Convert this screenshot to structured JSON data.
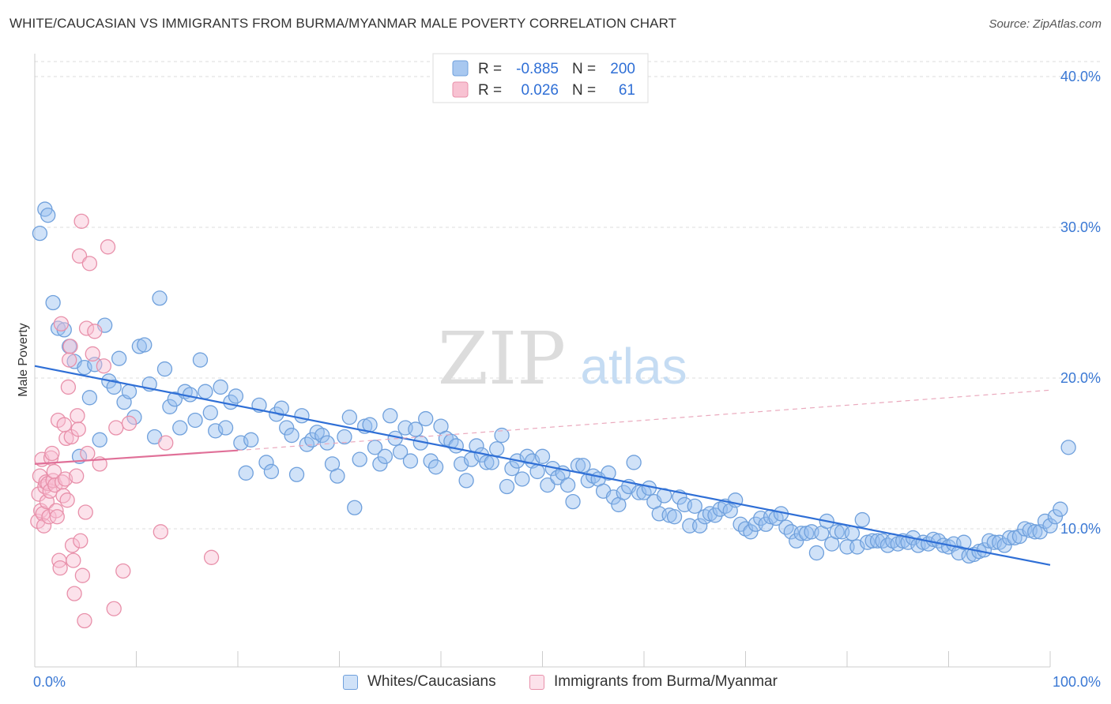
{
  "header": {
    "title": "WHITE/CAUCASIAN VS IMMIGRANTS FROM BURMA/MYANMAR MALE POVERTY CORRELATION CHART",
    "source": "Source: ZipAtlas.com"
  },
  "watermark": {
    "zip": "ZIP",
    "atlas": "atlas"
  },
  "stats": {
    "r_label": "R =",
    "n_label": "N =",
    "rows": [
      {
        "r": "-0.885",
        "n": "200",
        "color": "#a8c8f0",
        "border": "#6fa0dc"
      },
      {
        "r": "0.026",
        "n": "61",
        "color": "#f8c2d2",
        "border": "#e890aa"
      }
    ]
  },
  "chart_data": {
    "type": "scatter",
    "title": "WHITE/CAUCASIAN VS IMMIGRANTS FROM BURMA/MYANMAR MALE POVERTY CORRELATION CHART",
    "xlabel": "",
    "ylabel": "Male Poverty",
    "xlim": [
      0,
      100
    ],
    "ylim": [
      0,
      40
    ],
    "x_tick_labels": [
      "0.0%",
      "100.0%"
    ],
    "y_tick_values": [
      10,
      20,
      30,
      40
    ],
    "y_tick_labels": [
      "10.0%",
      "20.0%",
      "30.0%",
      "40.0%"
    ],
    "grid": true,
    "legend": "bottom",
    "series": [
      {
        "name": "Whites/Caucasians",
        "color": "#6fa0dc",
        "fill": "rgba(150,190,240,0.45)",
        "trend_color": "#2f6fd6",
        "trend": {
          "x0": 0,
          "y0": 20.8,
          "x1": 100,
          "y1": 7.6
        },
        "points": [
          [
            0.5,
            29.6
          ],
          [
            1,
            31.2
          ],
          [
            1.3,
            30.8
          ],
          [
            1.8,
            25
          ],
          [
            2.3,
            23.3
          ],
          [
            2.9,
            23.2
          ],
          [
            3.4,
            22.1
          ],
          [
            3.9,
            21.1
          ],
          [
            4.4,
            14.8
          ],
          [
            4.9,
            20.7
          ],
          [
            5.4,
            18.7
          ],
          [
            5.9,
            20.9
          ],
          [
            6.4,
            15.9
          ],
          [
            6.9,
            23.5
          ],
          [
            7.3,
            19.8
          ],
          [
            7.8,
            19.4
          ],
          [
            8.3,
            21.3
          ],
          [
            8.8,
            18.4
          ],
          [
            9.3,
            19.1
          ],
          [
            9.8,
            17.4
          ],
          [
            10.3,
            22.1
          ],
          [
            10.8,
            22.2
          ],
          [
            11.3,
            19.6
          ],
          [
            11.8,
            16.1
          ],
          [
            12.3,
            25.3
          ],
          [
            12.8,
            20.6
          ],
          [
            13.3,
            18.1
          ],
          [
            13.8,
            18.6
          ],
          [
            14.3,
            16.7
          ],
          [
            14.8,
            19.1
          ],
          [
            15.3,
            18.9
          ],
          [
            15.8,
            17.2
          ],
          [
            16.3,
            21.2
          ],
          [
            16.8,
            19.1
          ],
          [
            17.3,
            17.7
          ],
          [
            17.8,
            16.5
          ],
          [
            18.3,
            19.4
          ],
          [
            18.8,
            16.7
          ],
          [
            19.3,
            18.4
          ],
          [
            19.8,
            18.8
          ],
          [
            20.3,
            15.7
          ],
          [
            20.8,
            13.7
          ],
          [
            21.3,
            15.9
          ],
          [
            22.1,
            18.2
          ],
          [
            22.8,
            14.4
          ],
          [
            23.3,
            13.8
          ],
          [
            23.8,
            17.6
          ],
          [
            24.3,
            18
          ],
          [
            24.8,
            16.7
          ],
          [
            25.3,
            16.2
          ],
          [
            25.8,
            13.6
          ],
          [
            26.3,
            17.5
          ],
          [
            26.8,
            15.6
          ],
          [
            27.3,
            15.9
          ],
          [
            27.8,
            16.4
          ],
          [
            28.3,
            16.2
          ],
          [
            28.8,
            15.7
          ],
          [
            29.3,
            14.3
          ],
          [
            29.8,
            13.5
          ],
          [
            30.5,
            16.1
          ],
          [
            31,
            17.4
          ],
          [
            31.5,
            11.4
          ],
          [
            32,
            14.6
          ],
          [
            32.5,
            16.8
          ],
          [
            33,
            16.9
          ],
          [
            33.5,
            15.4
          ],
          [
            34,
            14.3
          ],
          [
            34.5,
            14.8
          ],
          [
            35,
            17.5
          ],
          [
            35.5,
            16
          ],
          [
            36,
            15.1
          ],
          [
            36.5,
            16.7
          ],
          [
            37,
            14.5
          ],
          [
            37.5,
            16.6
          ],
          [
            38,
            15.7
          ],
          [
            38.5,
            17.3
          ],
          [
            39,
            14.5
          ],
          [
            39.5,
            14.1
          ],
          [
            40,
            16.8
          ],
          [
            40.5,
            16
          ],
          [
            41,
            15.8
          ],
          [
            41.5,
            15.5
          ],
          [
            42,
            14.3
          ],
          [
            42.5,
            13.2
          ],
          [
            43,
            14.6
          ],
          [
            43.5,
            15.5
          ],
          [
            44,
            14.9
          ],
          [
            44.5,
            14.4
          ],
          [
            45,
            14.4
          ],
          [
            45.5,
            15.3
          ],
          [
            46,
            16.2
          ],
          [
            46.5,
            12.8
          ],
          [
            47,
            14
          ],
          [
            47.5,
            14.5
          ],
          [
            48,
            13.3
          ],
          [
            48.5,
            14.8
          ],
          [
            49,
            14.5
          ],
          [
            49.5,
            13.8
          ],
          [
            50,
            14.8
          ],
          [
            50.5,
            12.9
          ],
          [
            51,
            14
          ],
          [
            51.5,
            13.4
          ],
          [
            52,
            13.7
          ],
          [
            52.5,
            12.9
          ],
          [
            53,
            11.8
          ],
          [
            53.5,
            14.2
          ],
          [
            54,
            14.2
          ],
          [
            54.5,
            13.2
          ],
          [
            55,
            13.5
          ],
          [
            55.5,
            13.3
          ],
          [
            56,
            12.5
          ],
          [
            56.5,
            13.7
          ],
          [
            57,
            12.1
          ],
          [
            57.5,
            11.6
          ],
          [
            58,
            12.4
          ],
          [
            58.5,
            12.8
          ],
          [
            59,
            14.4
          ],
          [
            59.5,
            12.4
          ],
          [
            60,
            12.4
          ],
          [
            60.5,
            12.7
          ],
          [
            61,
            11.8
          ],
          [
            61.5,
            11
          ],
          [
            62,
            12.2
          ],
          [
            62.5,
            10.9
          ],
          [
            63,
            10.8
          ],
          [
            63.5,
            12.1
          ],
          [
            64,
            11.6
          ],
          [
            64.5,
            10.2
          ],
          [
            65,
            11.5
          ],
          [
            65.5,
            10.2
          ],
          [
            66,
            10.8
          ],
          [
            66.5,
            11
          ],
          [
            67,
            10.9
          ],
          [
            67.5,
            11.3
          ],
          [
            68,
            11.5
          ],
          [
            68.5,
            11.2
          ],
          [
            69,
            11.9
          ],
          [
            69.5,
            10.3
          ],
          [
            70,
            10
          ],
          [
            70.5,
            9.8
          ],
          [
            71,
            10.3
          ],
          [
            71.5,
            10.7
          ],
          [
            72,
            10.3
          ],
          [
            72.5,
            10.8
          ],
          [
            73,
            10.7
          ],
          [
            73.5,
            11
          ],
          [
            74,
            10.1
          ],
          [
            74.5,
            9.8
          ],
          [
            75,
            9.2
          ],
          [
            75.5,
            9.7
          ],
          [
            76,
            9.7
          ],
          [
            76.5,
            9.8
          ],
          [
            77,
            8.4
          ],
          [
            77.5,
            9.7
          ],
          [
            78,
            10.5
          ],
          [
            78.5,
            9
          ],
          [
            79,
            9.8
          ],
          [
            79.5,
            9.8
          ],
          [
            80,
            8.8
          ],
          [
            80.5,
            9.7
          ],
          [
            81,
            8.8
          ],
          [
            81.5,
            10.6
          ],
          [
            82,
            9.1
          ],
          [
            82.5,
            9.2
          ],
          [
            83,
            9.2
          ],
          [
            83.5,
            9.2
          ],
          [
            84,
            8.9
          ],
          [
            84.5,
            9.2
          ],
          [
            85,
            9
          ],
          [
            85.5,
            9.2
          ],
          [
            86,
            9.1
          ],
          [
            86.5,
            9.4
          ],
          [
            87,
            8.9
          ],
          [
            87.5,
            9.1
          ],
          [
            88,
            9
          ],
          [
            88.5,
            9.3
          ],
          [
            89,
            9.2
          ],
          [
            89.5,
            8.9
          ],
          [
            90,
            8.8
          ],
          [
            90.5,
            9
          ],
          [
            91,
            8.4
          ],
          [
            91.5,
            9.1
          ],
          [
            92,
            8.2
          ],
          [
            92.5,
            8.3
          ],
          [
            93,
            8.5
          ],
          [
            93.5,
            8.6
          ],
          [
            94,
            9.2
          ],
          [
            94.5,
            9.1
          ],
          [
            95,
            9.1
          ],
          [
            95.5,
            8.9
          ],
          [
            96,
            9.4
          ],
          [
            96.5,
            9.4
          ],
          [
            97,
            9.5
          ],
          [
            97.5,
            10
          ],
          [
            98,
            9.9
          ],
          [
            98.5,
            9.8
          ],
          [
            99,
            9.8
          ],
          [
            99.5,
            10.5
          ],
          [
            100,
            10.2
          ],
          [
            100.5,
            10.8
          ],
          [
            101,
            11.3
          ],
          [
            101.8,
            15.4
          ]
        ]
      },
      {
        "name": "Immigrants from Burma/Myanmar",
        "color": "#e890aa",
        "fill": "rgba(248,190,210,0.45)",
        "trend_color": "#e07098",
        "trend": {
          "x0": 0,
          "y0": 14.3,
          "x1": 20,
          "y1": 15.2
        },
        "trend_ext": {
          "x0": 20,
          "y0": 15.2,
          "x1": 100,
          "y1": 19.2
        },
        "points": [
          [
            0.3,
            10.5
          ],
          [
            0.4,
            12.3
          ],
          [
            0.5,
            13.5
          ],
          [
            0.6,
            11.2
          ],
          [
            0.7,
            14.6
          ],
          [
            0.8,
            11
          ],
          [
            0.9,
            10.2
          ],
          [
            1,
            12.8
          ],
          [
            1.1,
            13.1
          ],
          [
            1.2,
            11.8
          ],
          [
            1.3,
            13
          ],
          [
            1.4,
            10.8
          ],
          [
            1.5,
            12.5
          ],
          [
            1.6,
            14.7
          ],
          [
            1.7,
            15
          ],
          [
            1.8,
            13.2
          ],
          [
            1.9,
            13.8
          ],
          [
            2,
            12.9
          ],
          [
            2.1,
            11.2
          ],
          [
            2.2,
            10.8
          ],
          [
            2.3,
            17.2
          ],
          [
            2.4,
            7.9
          ],
          [
            2.5,
            7.4
          ],
          [
            2.6,
            23.6
          ],
          [
            2.7,
            13.1
          ],
          [
            2.8,
            12.2
          ],
          [
            2.9,
            16.9
          ],
          [
            3,
            13.3
          ],
          [
            3.1,
            16
          ],
          [
            3.2,
            11.9
          ],
          [
            3.3,
            19.4
          ],
          [
            3.4,
            21.2
          ],
          [
            3.5,
            22.1
          ],
          [
            3.6,
            16.1
          ],
          [
            3.7,
            8.9
          ],
          [
            3.8,
            7.9
          ],
          [
            3.9,
            5.7
          ],
          [
            4.1,
            13.5
          ],
          [
            4.2,
            17.5
          ],
          [
            4.3,
            16.6
          ],
          [
            4.4,
            28.1
          ],
          [
            4.5,
            9.2
          ],
          [
            4.6,
            30.4
          ],
          [
            4.7,
            6.9
          ],
          [
            4.9,
            3.9
          ],
          [
            5,
            11.1
          ],
          [
            5.1,
            23.3
          ],
          [
            5.2,
            15
          ],
          [
            5.4,
            27.6
          ],
          [
            5.7,
            21.6
          ],
          [
            5.9,
            23.1
          ],
          [
            6.4,
            14.3
          ],
          [
            6.8,
            20.8
          ],
          [
            7.2,
            28.7
          ],
          [
            7.8,
            4.7
          ],
          [
            8,
            16.7
          ],
          [
            8.7,
            7.2
          ],
          [
            9.3,
            17
          ],
          [
            12.4,
            9.8
          ],
          [
            12.9,
            15.7
          ],
          [
            17.4,
            8.1
          ]
        ]
      }
    ]
  }
}
